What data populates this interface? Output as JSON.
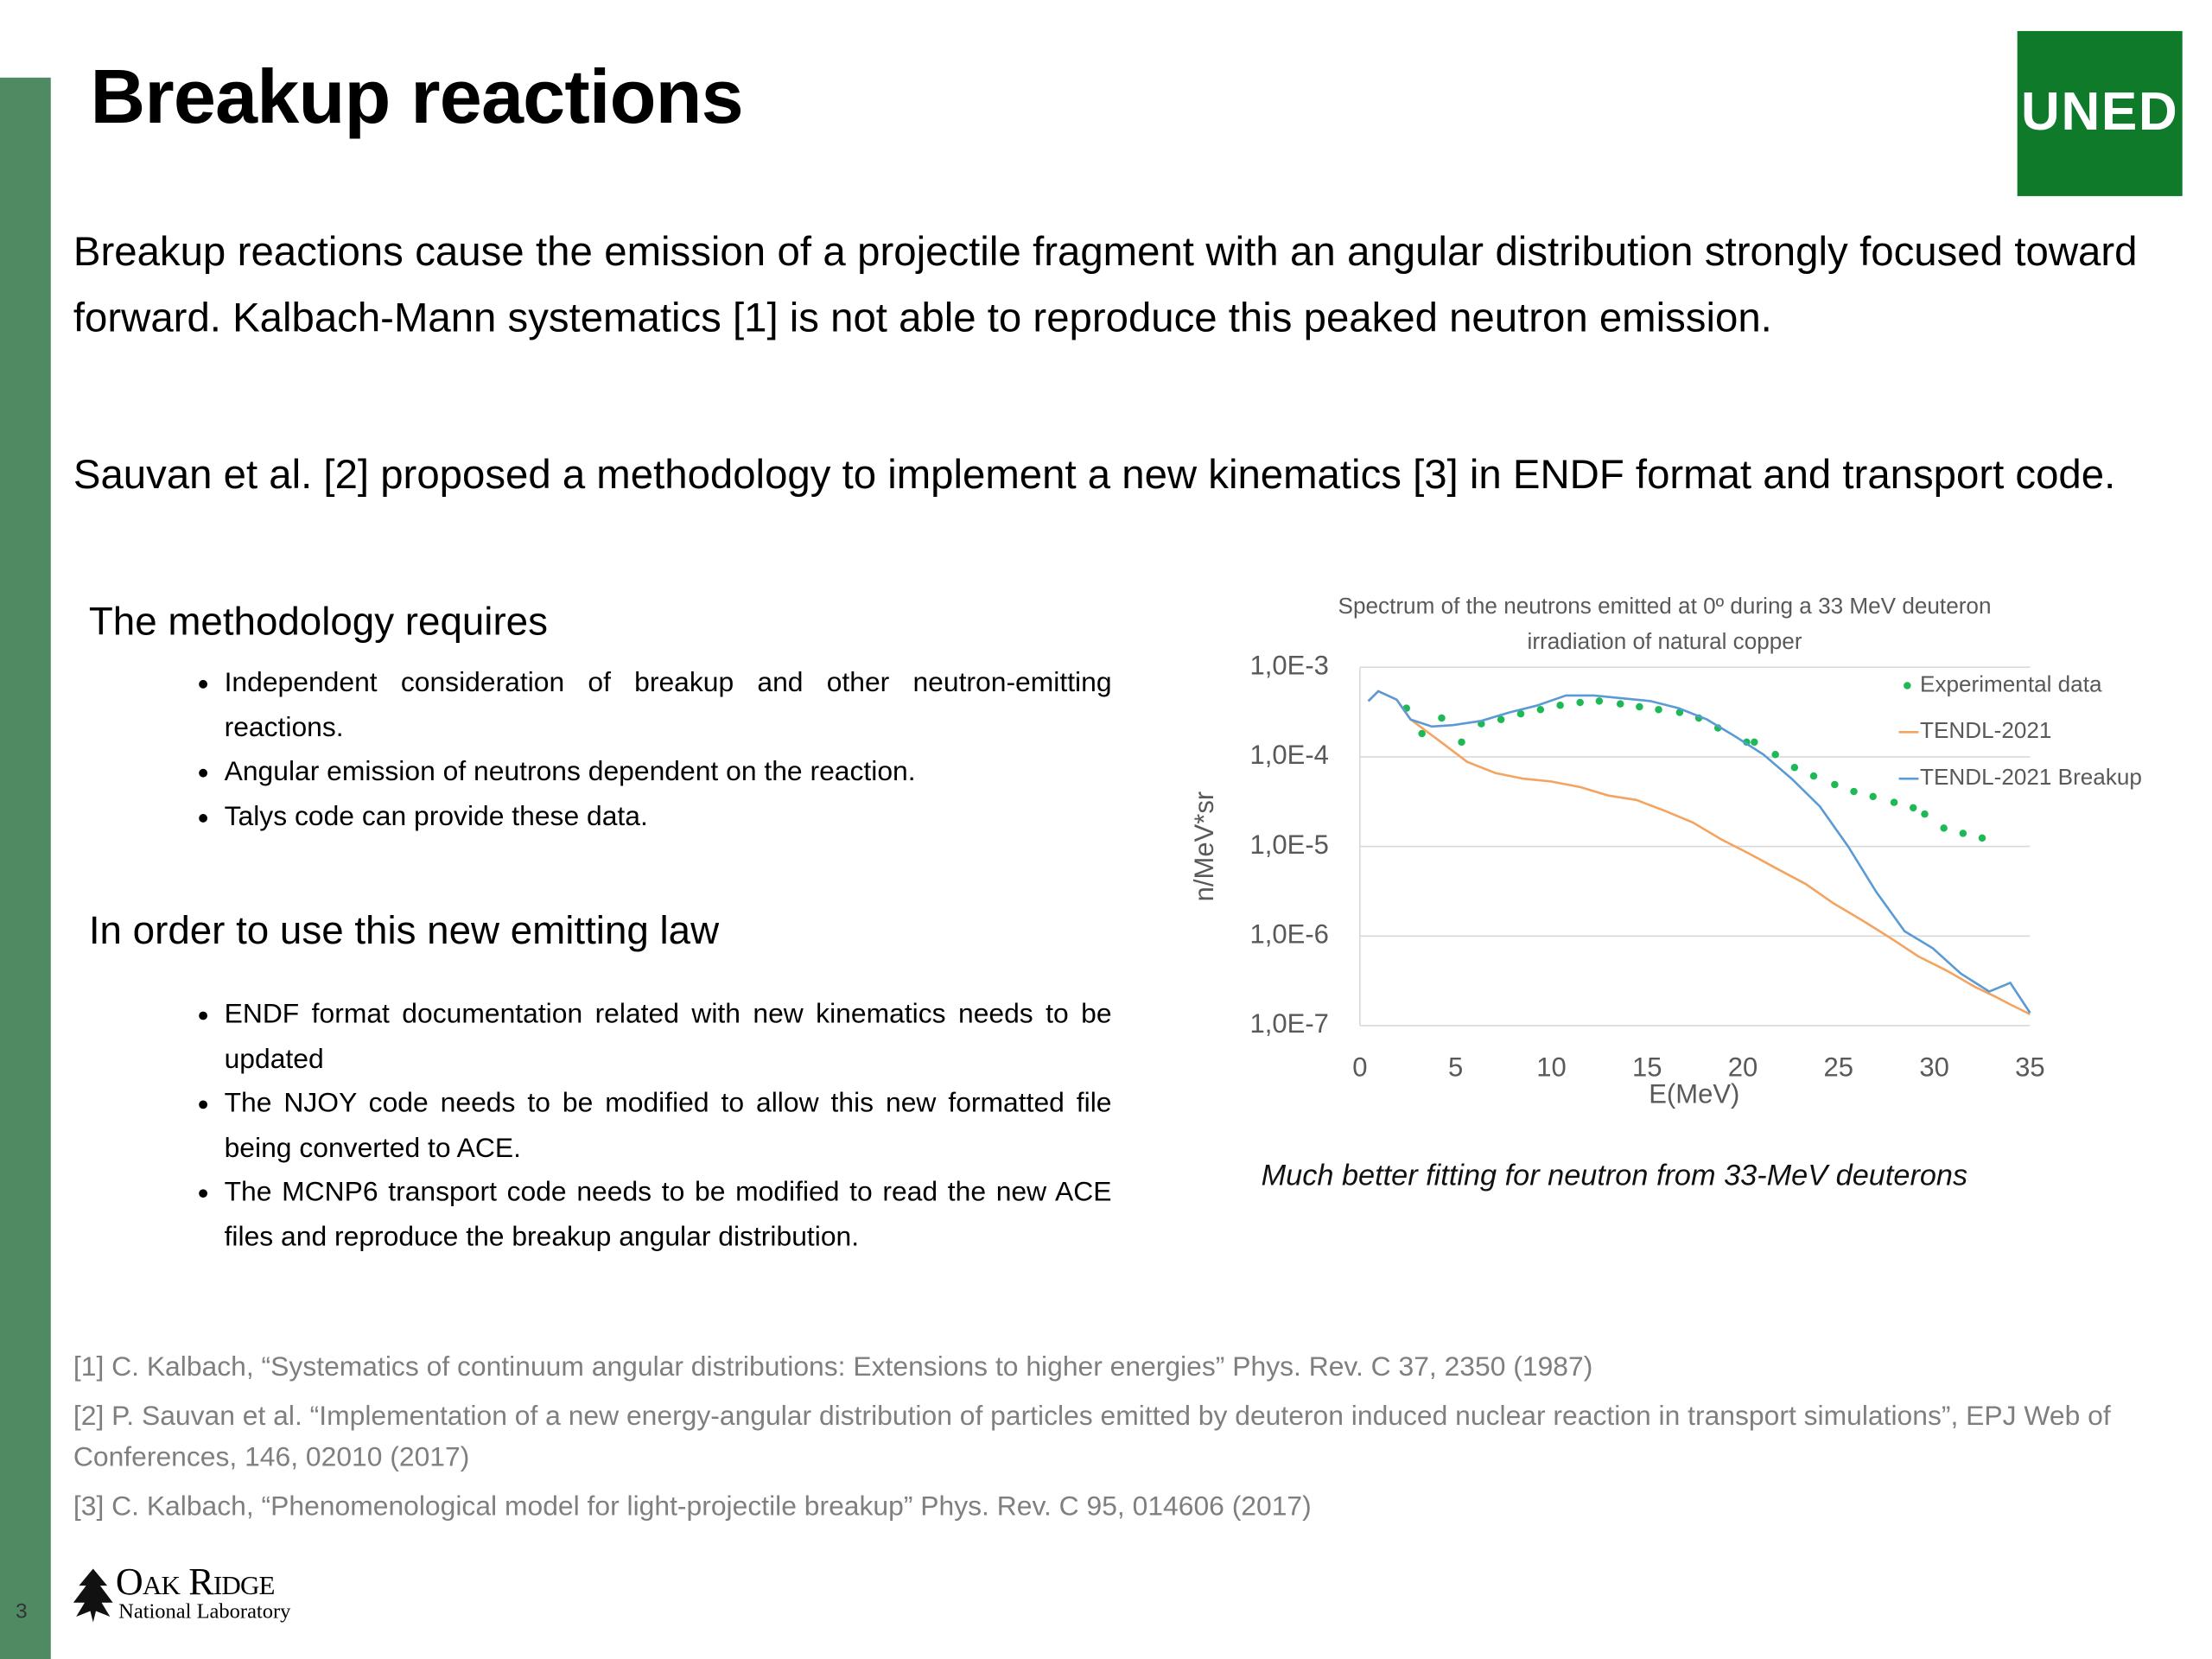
{
  "header": {
    "title": "Breakup reactions",
    "logo": "UNED"
  },
  "paragraphs": [
    "Breakup reactions cause the emission of a projectile fragment with an angular distribution strongly focused toward forward. Kalbach-Mann systematics [1] is not able to reproduce this peaked neutron emission.",
    "Sauvan et al. [2] proposed a methodology to implement a new kinematics [3] in ENDF format and transport code."
  ],
  "sections": [
    {
      "heading": "The methodology requires",
      "bullets": [
        "Independent consideration of breakup and other neutron-emitting reactions.",
        "Angular emission of neutrons dependent on the reaction.",
        "Talys code can provide these data."
      ]
    },
    {
      "heading": "In order to use this new emitting law",
      "bullets": [
        "ENDF format documentation related with new kinematics needs to be updated",
        "The NJOY code needs to be modified to allow this new formatted file being converted to ACE.",
        "The MCNP6 transport code needs to be modified to read the new ACE files and reproduce the breakup angular distribution."
      ]
    }
  ],
  "chart_data": {
    "type": "line",
    "title": [
      "Spectrum of the neutrons emitted at 0º during a 33 MeV deuteron",
      "irradiation of natural copper"
    ],
    "x_label": "E(MeV)",
    "y_label": "n/MeV*sr",
    "xlim": [
      0,
      35
    ],
    "xticks": [
      0,
      5,
      10,
      15,
      20,
      25,
      30,
      35
    ],
    "ylim": [
      1e-07,
      0.001
    ],
    "ylog": true,
    "yticks": [
      {
        "value": 0.001,
        "label": "1,0E-3"
      },
      {
        "value": 0.0001,
        "label": "1,0E-4"
      },
      {
        "value": 1e-05,
        "label": "1,0E-5"
      },
      {
        "value": 1e-06,
        "label": "1,0E-6"
      },
      {
        "value": 1e-07,
        "label": "1,0E-7"
      }
    ],
    "grid": true,
    "legend": "top-right",
    "series": [
      {
        "name": "Experimental data",
        "color": "#1db954",
        "mode": "markers",
        "x": [
          2.43,
          3.24,
          4.27,
          5.31,
          6.34,
          7.37,
          8.4,
          9.43,
          10.46,
          11.5,
          12.5,
          13.6,
          14.6,
          15.6,
          16.7,
          17.7,
          18.7,
          20.2,
          20.6,
          21.7,
          22.7,
          23.7,
          24.8,
          25.8,
          26.8,
          27.9,
          28.9,
          29.5,
          30.5,
          31.5,
          32.5
        ],
        "values": [
          0.000349,
          0.000182,
          0.000271,
          0.000146,
          0.000234,
          0.000261,
          0.000302,
          0.000337,
          0.000376,
          0.000404,
          0.000419,
          0.00039,
          0.000362,
          0.000337,
          0.000313,
          0.000271,
          0.00021,
          0.000146,
          0.000146,
          0.000106,
          7.6e-05,
          6.1e-05,
          4.9e-05,
          4.1e-05,
          3.6e-05,
          3.1e-05,
          2.7e-05,
          2.3e-05,
          1.6e-05,
          1.4e-05,
          1.24e-05
        ]
      },
      {
        "name": "TENDL-2021",
        "color": "#f4a460",
        "mode": "lines",
        "x": [
          0.44,
          0.96,
          1.92,
          2.65,
          4.13,
          5.6,
          7.07,
          8.55,
          10.0,
          11.5,
          12.97,
          14.44,
          15.92,
          17.39,
          18.87,
          20.34,
          21.81,
          23.29,
          24.76,
          26.23,
          27.71,
          29.18,
          30.66,
          32.13,
          33.2,
          33.97,
          35
        ],
        "values": [
          0.000419,
          0.00054,
          0.000435,
          0.000261,
          0.000152,
          8.8e-05,
          6.6e-05,
          5.7e-05,
          5.3e-05,
          4.6e-05,
          3.7e-05,
          3.3e-05,
          2.5e-05,
          1.85e-05,
          1.2e-05,
          8.3e-06,
          5.6e-06,
          3.8e-06,
          2.3e-06,
          1.5e-06,
          9.5e-07,
          5.9e-07,
          4.1e-07,
          2.7e-07,
          2.1e-07,
          1.72e-07,
          1.34e-07
        ]
      },
      {
        "name": "TENDL-2021 Breakup",
        "color": "#5b9bd5",
        "mode": "lines",
        "x": [
          0.44,
          0.96,
          1.92,
          2.65,
          3.76,
          4.86,
          6.34,
          7.81,
          9.29,
          10.76,
          12.23,
          13.71,
          15.18,
          16.65,
          18.13,
          19.6,
          21.08,
          22.55,
          24.02,
          25.5,
          26.97,
          28.45,
          29.92,
          31.39,
          32.87,
          33.97,
          35
        ],
        "values": [
          0.000419,
          0.00054,
          0.000435,
          0.000261,
          0.000218,
          0.000226,
          0.000252,
          0.000313,
          0.000376,
          0.000484,
          0.000484,
          0.00045,
          0.000419,
          0.000349,
          0.000261,
          0.000169,
          0.000106,
          5.7e-05,
          2.8e-05,
          1e-05,
          3.1e-06,
          1.13e-06,
          7.3e-07,
          3.8e-07,
          2.4e-07,
          3e-07,
          1.39e-07
        ]
      }
    ]
  },
  "caption": "Much better fitting for neutron from 33-MeV deuterons",
  "references": [
    "[1] C. Kalbach, “Systematics of continuum angular distributions: Extensions to higher energies” Phys. Rev. C 37, 2350 (1987)",
    "[2] P. Sauvan et al. “Implementation of a new energy-angular distribution of particles emitted by deuteron induced nuclear reaction in transport simulations”, EPJ Web of Conferences, 146,  02010 (2017)",
    "[3] C. Kalbach, “Phenomenological model for light-projectile breakup” Phys. Rev. C 95, 014606 (2017)"
  ],
  "footer": {
    "lab_name": "Oak Ridge",
    "lab_subtitle": "National Laboratory",
    "page_number": "3"
  }
}
